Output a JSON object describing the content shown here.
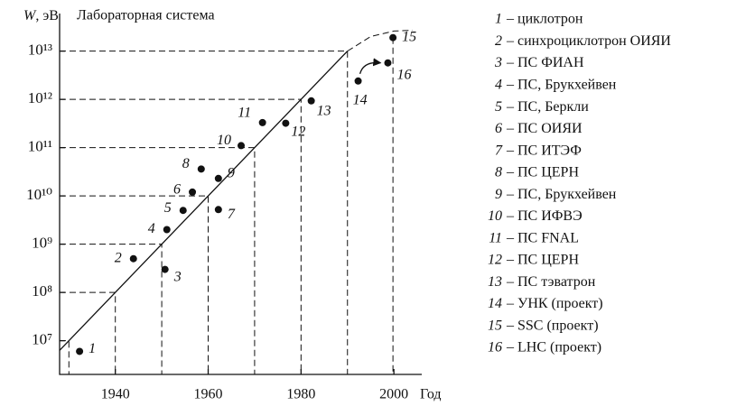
{
  "chart_data": {
    "type": "scatter",
    "title": "Лабораторная система",
    "y_label_symbol": "W",
    "y_label_unit": ", эВ",
    "x_label": "Год",
    "log_y": true,
    "xlim": [
      1928,
      2006
    ],
    "ylim": [
      2000000,
      60000000000000
    ],
    "xticks": [
      1940,
      1960,
      1980,
      2000
    ],
    "yticks": [
      {
        "value": 10000000,
        "label": "10⁷"
      },
      {
        "value": 100000000,
        "label": "10⁸"
      },
      {
        "value": 1000000000,
        "label": "10⁹"
      },
      {
        "value": 10000000000,
        "label": "10¹⁰"
      },
      {
        "value": 100000000000,
        "label": "10¹¹"
      },
      {
        "value": 1000000000000,
        "label": "10¹²"
      },
      {
        "value": 10000000000000,
        "label": "10¹³"
      }
    ],
    "series": [
      {
        "color": "#111111",
        "labels": [
          "1",
          "2",
          "3",
          "4",
          "5",
          "6",
          "7",
          "8",
          "9",
          "10",
          "11",
          "12",
          "13",
          "14",
          "15",
          "16"
        ],
        "x": [
          1932.3,
          1943.9,
          1950.7,
          1951.1,
          1954.6,
          1956.6,
          1962.2,
          1958.5,
          1962.2,
          1967.1,
          1971.7,
          1976.7,
          1982.2,
          1992.3,
          1999.8,
          1998.7
        ],
        "values": [
          6000000,
          500000000,
          300000000,
          2000000000,
          5000000000,
          12000000000,
          5200000000,
          36000000000,
          23000000000,
          110000000000,
          330000000000,
          320000000000,
          930000000000,
          2400000000000,
          19000000000000,
          5700000000000
        ]
      }
    ],
    "trend": {
      "x": [
        1928,
        1990
      ],
      "values": [
        6300000,
        10000000000000
      ]
    },
    "trend_extension": {
      "x": [
        1990,
        1995,
        2000,
        2004
      ],
      "values": [
        10000000000000,
        20000000000000,
        26000000000000,
        27000000000000
      ]
    },
    "guides": {
      "x": [
        1930,
        1940,
        1950,
        1960,
        1970,
        1980,
        1990
      ],
      "values": [
        10000000,
        100000000,
        1000000000,
        10000000000,
        100000000000,
        1000000000000,
        10000000000000
      ]
    },
    "legend": [
      {
        "number": "1",
        "label": "– циклотрон"
      },
      {
        "number": "2",
        "label": "– синхроциклотрон ОИЯИ"
      },
      {
        "number": "3",
        "label": "– ПС ФИАН"
      },
      {
        "number": "4",
        "label": "– ПС, Брукхейвен"
      },
      {
        "number": "5",
        "label": "– ПС, Беркли"
      },
      {
        "number": "6",
        "label": "– ПС ОИЯИ"
      },
      {
        "number": "7",
        "label": "– ПС ИТЭФ"
      },
      {
        "number": "8",
        "label": "– ПС ЦЕРН"
      },
      {
        "number": "9",
        "label": "– ПС, Брукхейвен"
      },
      {
        "number": "10",
        "label": "– ПС ИФВЭ"
      },
      {
        "number": "11",
        "label": "– ПС FNAL"
      },
      {
        "number": "12",
        "label": "– ПС ЦЕРН"
      },
      {
        "number": "13",
        "label": "– ПС тэватрон"
      },
      {
        "number": "14",
        "label": "– УНК (проект)"
      },
      {
        "number": "15",
        "label": "– SSC (проект)"
      },
      {
        "number": "16",
        "label": "– LHC (проект)"
      }
    ]
  }
}
